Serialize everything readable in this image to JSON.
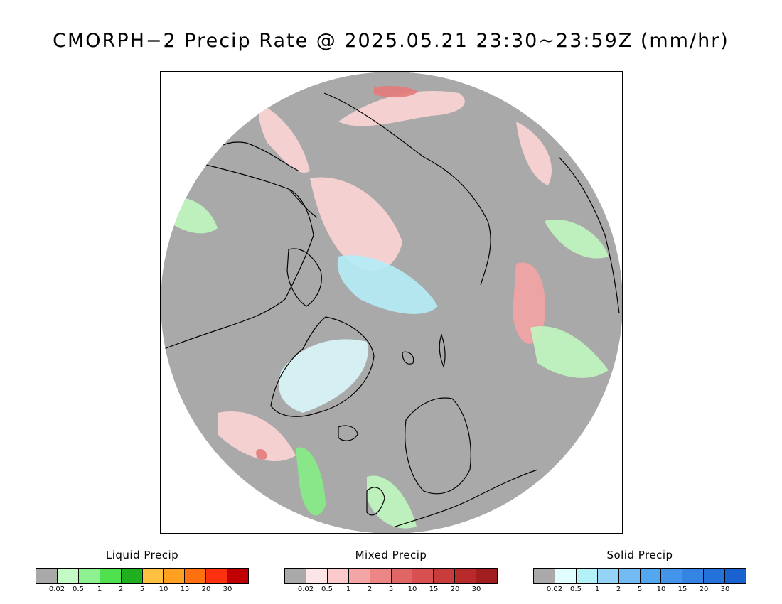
{
  "title": "CMORPH−2 Precip Rate @ 2025.05.21 23:30~23:59Z (mm/hr)",
  "map": {
    "projection": "north-polar-stereographic",
    "colors": {
      "background": "#a9a9a9",
      "land_outline": "#000000",
      "liquid_light": "#bff7bf",
      "liquid_mid": "#85ec85",
      "mixed_light": "#fcd4d4",
      "mixed_mid": "#f4a3a3",
      "mixed_strong": "#e47a7a",
      "solid_light": "#d9f6fb",
      "solid_mid": "#b4ecf6"
    }
  },
  "legends": [
    {
      "title": "Liquid Precip",
      "ticks": [
        "0.02",
        "0.5",
        "1",
        "2",
        "5",
        "10",
        "15",
        "20",
        "30"
      ],
      "colors": [
        "#a9a9a9",
        "#c4fbc4",
        "#8ef08e",
        "#4ee04e",
        "#1fb01f",
        "#ffbf40",
        "#ffa020",
        "#ff7010",
        "#ff3010",
        "#c00000"
      ]
    },
    {
      "title": "Mixed Precip",
      "ticks": [
        "0.02",
        "0.5",
        "1",
        "2",
        "5",
        "10",
        "15",
        "20",
        "30"
      ],
      "colors": [
        "#a9a9a9",
        "#fde5e5",
        "#fbcaca",
        "#f4a6a6",
        "#ec8585",
        "#e06666",
        "#d85050",
        "#c83c3c",
        "#b82a2a",
        "#a01e1e"
      ]
    },
    {
      "title": "Solid Precip",
      "ticks": [
        "0.02",
        "0.5",
        "1",
        "2",
        "5",
        "10",
        "15",
        "20",
        "30"
      ],
      "colors": [
        "#a9a9a9",
        "#e2fdfd",
        "#b4f1f7",
        "#96d4f7",
        "#74bbf3",
        "#54a6ef",
        "#4494ea",
        "#3584e4",
        "#2672dc",
        "#1a62d0"
      ]
    }
  ]
}
